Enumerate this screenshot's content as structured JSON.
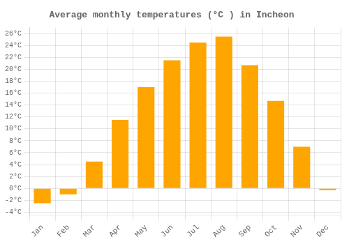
{
  "chart_data": {
    "type": "bar",
    "title": "Average monthly temperatures (°C ) in Incheon",
    "categories": [
      "Jan",
      "Feb",
      "Mar",
      "Apr",
      "May",
      "Jun",
      "Jul",
      "Aug",
      "Sep",
      "Oct",
      "Nov",
      "Dec"
    ],
    "values": [
      -2.5,
      -1.0,
      4.5,
      11.5,
      17.0,
      21.5,
      24.5,
      25.5,
      20.7,
      14.7,
      7.0,
      -0.3
    ],
    "color": "#FFA500",
    "ylim": [
      -4.5,
      27
    ],
    "yticks": [
      {
        "value": -4,
        "label": "-4°C"
      },
      {
        "value": -2,
        "label": "-2°C"
      },
      {
        "value": 0,
        "label": "0°C"
      },
      {
        "value": 2,
        "label": "2°C"
      },
      {
        "value": 4,
        "label": "4°C"
      },
      {
        "value": 6,
        "label": "6°C"
      },
      {
        "value": 8,
        "label": "8°C"
      },
      {
        "value": 10,
        "label": "10°C"
      },
      {
        "value": 12,
        "label": "12°C"
      },
      {
        "value": 14,
        "label": "14°C"
      },
      {
        "value": 16,
        "label": "16°C"
      },
      {
        "value": 18,
        "label": "18°C"
      },
      {
        "value": 20,
        "label": "20°C"
      },
      {
        "value": 22,
        "label": "22°C"
      },
      {
        "value": 24,
        "label": "24°C"
      },
      {
        "value": 26,
        "label": "26°C"
      }
    ],
    "grid": true
  }
}
